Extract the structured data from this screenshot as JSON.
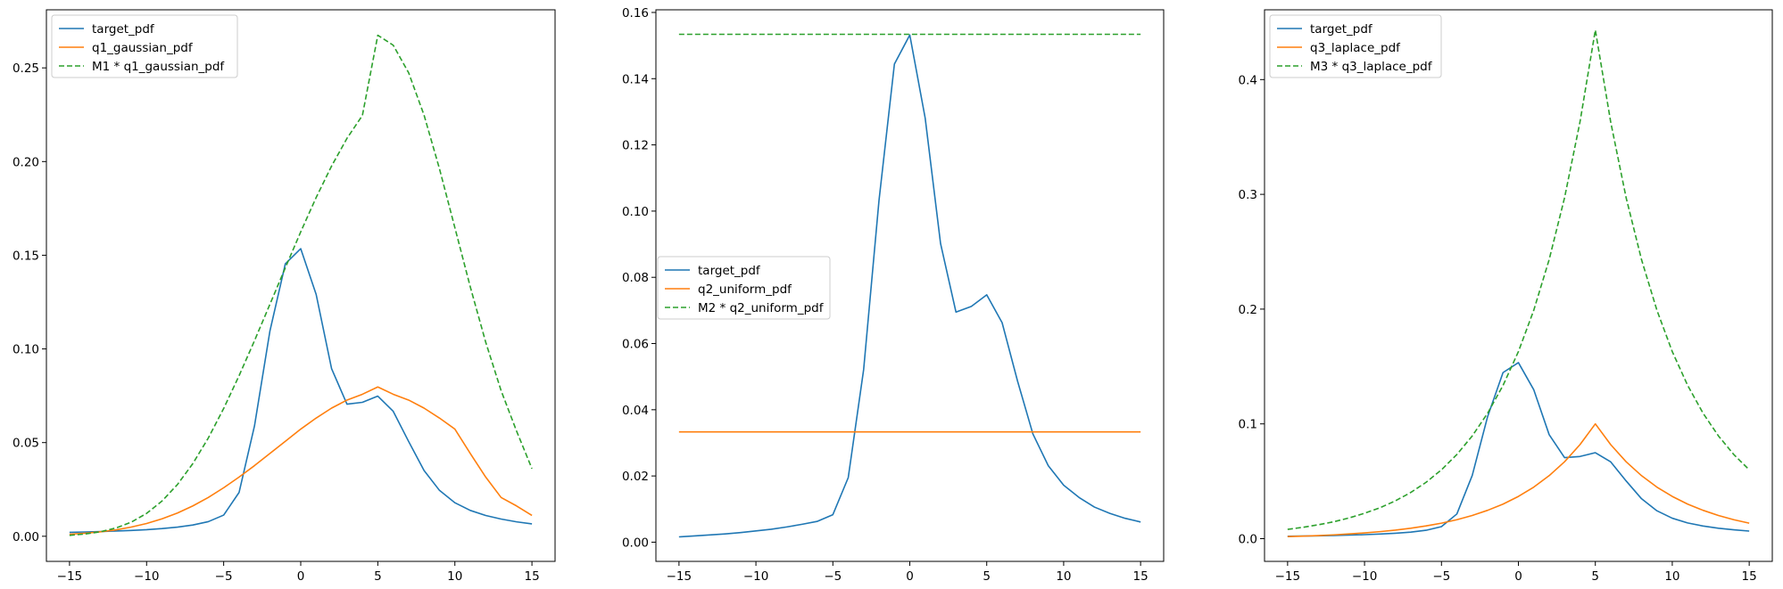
{
  "chart_data": [
    {
      "type": "line",
      "title": "",
      "xlabel": "",
      "ylabel": "",
      "xlim": [
        -16.5,
        16.5
      ],
      "ylim": [
        -0.0134,
        0.281
      ],
      "xticks": [
        -15,
        -10,
        -5,
        0,
        5,
        10,
        15
      ],
      "xtick_labels": [
        "−15",
        "−10",
        "−5",
        "0",
        "5",
        "10",
        "15"
      ],
      "yticks": [
        0.0,
        0.05,
        0.1,
        0.15,
        0.2,
        0.25
      ],
      "ytick_labels": [
        "0.00",
        "0.05",
        "0.10",
        "0.15",
        "0.20",
        "0.25"
      ],
      "grid": false,
      "legend_position": "upper left",
      "x": [
        -15,
        -14,
        -13,
        -12,
        -11,
        -10,
        -9,
        -8,
        -7,
        -6,
        -5,
        -4,
        -3,
        -2,
        -1,
        0,
        1,
        2,
        3,
        4,
        5,
        6,
        7,
        8,
        9,
        10,
        11,
        12,
        13,
        14,
        15
      ],
      "series": [
        {
          "name": "target_pdf",
          "color": "#1f77b4",
          "dash": "solid",
          "values": [
            0.0021,
            0.0023,
            0.0025,
            0.0028,
            0.0031,
            0.0035,
            0.0041,
            0.0049,
            0.006,
            0.0078,
            0.0113,
            0.0234,
            0.0589,
            0.1095,
            0.1454,
            0.1535,
            0.1291,
            0.0895,
            0.0705,
            0.0715,
            0.0748,
            0.0667,
            0.0506,
            0.0351,
            0.0245,
            0.0179,
            0.0138,
            0.0111,
            0.0092,
            0.0077,
            0.0066
          ]
        },
        {
          "name": "q1_gaussian_pdf",
          "color": "#ff7f0e",
          "dash": "solid",
          "values": [
            0.0011,
            0.0016,
            0.0024,
            0.0034,
            0.0049,
            0.0068,
            0.0093,
            0.0124,
            0.0162,
            0.0207,
            0.0259,
            0.0316,
            0.0377,
            0.0442,
            0.0507,
            0.0572,
            0.0631,
            0.0684,
            0.0727,
            0.0758,
            0.0797,
            0.0758,
            0.0727,
            0.0684,
            0.0631,
            0.0572,
            0.0442,
            0.0316,
            0.0207,
            0.0162,
            0.0111
          ]
        },
        {
          "name": "M1 * q1_gaussian_pdf",
          "color": "#2ca02c",
          "dash": "dashed",
          "values": [
            0.0005,
            0.0012,
            0.0024,
            0.0044,
            0.0075,
            0.0122,
            0.0188,
            0.0276,
            0.0388,
            0.0524,
            0.0682,
            0.0857,
            0.1044,
            0.1238,
            0.1433,
            0.1625,
            0.1808,
            0.1976,
            0.2124,
            0.2246,
            0.2674,
            0.2621,
            0.2474,
            0.2248,
            0.1962,
            0.1647,
            0.1331,
            0.1036,
            0.0777,
            0.0562,
            0.0361
          ]
        }
      ]
    },
    {
      "type": "line",
      "title": "",
      "xlabel": "",
      "ylabel": "",
      "xlim": [
        -16.5,
        16.5
      ],
      "ylim": [
        -0.0058,
        0.1608
      ],
      "xticks": [
        -15,
        -10,
        -5,
        0,
        5,
        10,
        15
      ],
      "xtick_labels": [
        "−15",
        "−10",
        "−5",
        "0",
        "5",
        "10",
        "15"
      ],
      "yticks": [
        0.0,
        0.02,
        0.04,
        0.06,
        0.08,
        0.1,
        0.12,
        0.14,
        0.16
      ],
      "ytick_labels": [
        "0.00",
        "0.02",
        "0.04",
        "0.06",
        "0.08",
        "0.10",
        "0.12",
        "0.14",
        "0.16"
      ],
      "grid": false,
      "legend_position": "center left",
      "x": [
        -15,
        -14,
        -13,
        -12,
        -11,
        -10,
        -9,
        -8,
        -7,
        -6,
        -5,
        -4,
        -3,
        -2,
        -1,
        0,
        1,
        2,
        3,
        4,
        5,
        6,
        7,
        8,
        9,
        10,
        11,
        12,
        13,
        14,
        15
      ],
      "series": [
        {
          "name": "target_pdf",
          "color": "#1f77b4",
          "dash": "solid",
          "values": [
            0.0016,
            0.0019,
            0.0022,
            0.0025,
            0.0029,
            0.0034,
            0.0039,
            0.0046,
            0.0054,
            0.0063,
            0.0083,
            0.0195,
            0.0521,
            0.1033,
            0.1444,
            0.1532,
            0.1281,
            0.0902,
            0.0695,
            0.0712,
            0.0747,
            0.0663,
            0.0487,
            0.0327,
            0.0231,
            0.0172,
            0.0135,
            0.0106,
            0.0087,
            0.0072,
            0.0061
          ]
        },
        {
          "name": "q2_uniform_pdf",
          "color": "#ff7f0e",
          "dash": "solid",
          "values": [
            0.0333,
            0.0333,
            0.0333,
            0.0333,
            0.0333,
            0.0333,
            0.0333,
            0.0333,
            0.0333,
            0.0333,
            0.0333,
            0.0333,
            0.0333,
            0.0333,
            0.0333,
            0.0333,
            0.0333,
            0.0333,
            0.0333,
            0.0333,
            0.0333,
            0.0333,
            0.0333,
            0.0333,
            0.0333,
            0.0333,
            0.0333,
            0.0333,
            0.0333,
            0.0333,
            0.0333
          ]
        },
        {
          "name": "M2 * q2_uniform_pdf",
          "color": "#2ca02c",
          "dash": "dashed",
          "values": [
            0.1534,
            0.1534,
            0.1534,
            0.1534,
            0.1534,
            0.1534,
            0.1534,
            0.1534,
            0.1534,
            0.1534,
            0.1534,
            0.1534,
            0.1534,
            0.1534,
            0.1534,
            0.1534,
            0.1534,
            0.1534,
            0.1534,
            0.1534,
            0.1534,
            0.1534,
            0.1534,
            0.1534,
            0.1534,
            0.1534,
            0.1534,
            0.1534,
            0.1534,
            0.1534,
            0.1534
          ]
        }
      ]
    },
    {
      "type": "line",
      "title": "",
      "xlabel": "",
      "ylabel": "",
      "xlim": [
        -16.5,
        16.5
      ],
      "ylim": [
        -0.0198,
        0.4608
      ],
      "xticks": [
        -15,
        -10,
        -5,
        0,
        5,
        10,
        15
      ],
      "xtick_labels": [
        "−15",
        "−10",
        "−5",
        "0",
        "5",
        "10",
        "15"
      ],
      "yticks": [
        0.0,
        0.1,
        0.2,
        0.3,
        0.4
      ],
      "ytick_labels": [
        "0.0",
        "0.1",
        "0.2",
        "0.3",
        "0.4"
      ],
      "grid": false,
      "legend_position": "upper left",
      "x": [
        -15,
        -14,
        -13,
        -12,
        -11,
        -10,
        -9,
        -8,
        -7,
        -6,
        -5,
        -4,
        -3,
        -2,
        -1,
        0,
        1,
        2,
        3,
        4,
        5,
        6,
        7,
        8,
        9,
        10,
        11,
        12,
        13,
        14,
        15
      ],
      "series": [
        {
          "name": "target_pdf",
          "color": "#1f77b4",
          "dash": "solid",
          "values": [
            0.0021,
            0.0023,
            0.0025,
            0.0028,
            0.0031,
            0.0035,
            0.004,
            0.0047,
            0.0057,
            0.0073,
            0.0105,
            0.0215,
            0.0551,
            0.1064,
            0.1447,
            0.1534,
            0.1297,
            0.0906,
            0.0706,
            0.0716,
            0.0749,
            0.0669,
            0.0503,
            0.0348,
            0.0243,
            0.0178,
            0.0137,
            0.011,
            0.0091,
            0.0077,
            0.0066
          ]
        },
        {
          "name": "q3_laplace_pdf",
          "color": "#ff7f0e",
          "dash": "solid",
          "values": [
            0.0018,
            0.0022,
            0.0027,
            0.0033,
            0.0041,
            0.005,
            0.0061,
            0.0074,
            0.0091,
            0.0111,
            0.0135,
            0.0165,
            0.0202,
            0.0247,
            0.0301,
            0.0368,
            0.0449,
            0.0549,
            0.067,
            0.0819,
            0.1,
            0.0819,
            0.067,
            0.0549,
            0.0449,
            0.0368,
            0.0301,
            0.0247,
            0.0202,
            0.0165,
            0.0135
          ]
        },
        {
          "name": "M3 * q3_laplace_pdf",
          "color": "#2ca02c",
          "dash": "dashed",
          "values": [
            0.0081,
            0.0099,
            0.0121,
            0.0147,
            0.0181,
            0.0221,
            0.0269,
            0.0329,
            0.0402,
            0.0491,
            0.06,
            0.0733,
            0.0895,
            0.1093,
            0.1335,
            0.163,
            0.1991,
            0.2432,
            0.2971,
            0.3629,
            0.4432,
            0.3629,
            0.2971,
            0.2432,
            0.1991,
            0.163,
            0.1335,
            0.1093,
            0.0895,
            0.0733,
            0.06
          ]
        }
      ]
    }
  ]
}
